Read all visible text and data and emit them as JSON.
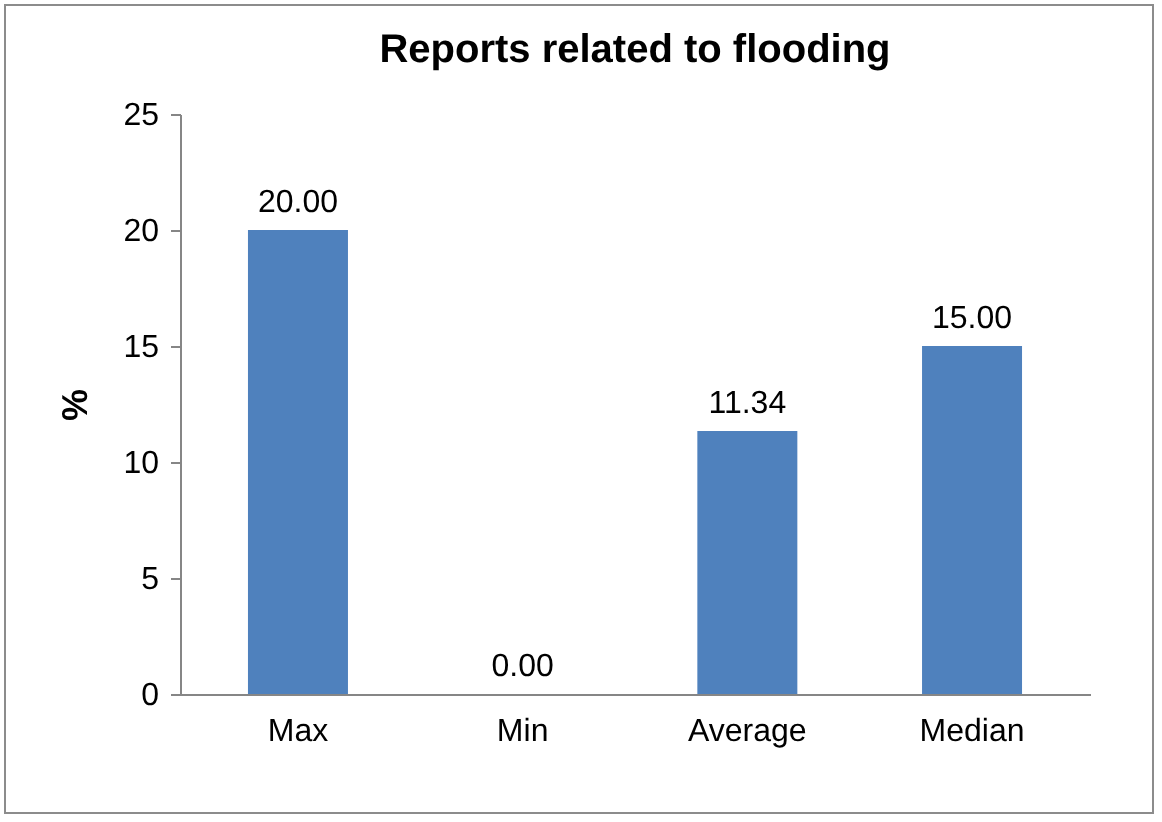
{
  "chart_data": {
    "type": "bar",
    "title": "Reports related to flooding",
    "ylabel": "%",
    "categories": [
      "Max",
      "Min",
      "Average",
      "Median"
    ],
    "values": [
      20,
      0,
      11.34,
      15
    ],
    "value_labels": [
      "20.00",
      "0.00",
      "11.34",
      "15.00"
    ],
    "color": "#4f81bd",
    "ylim": [
      0,
      25
    ],
    "yticks": [
      0,
      5,
      10,
      15,
      20,
      25
    ],
    "grid": false
  }
}
